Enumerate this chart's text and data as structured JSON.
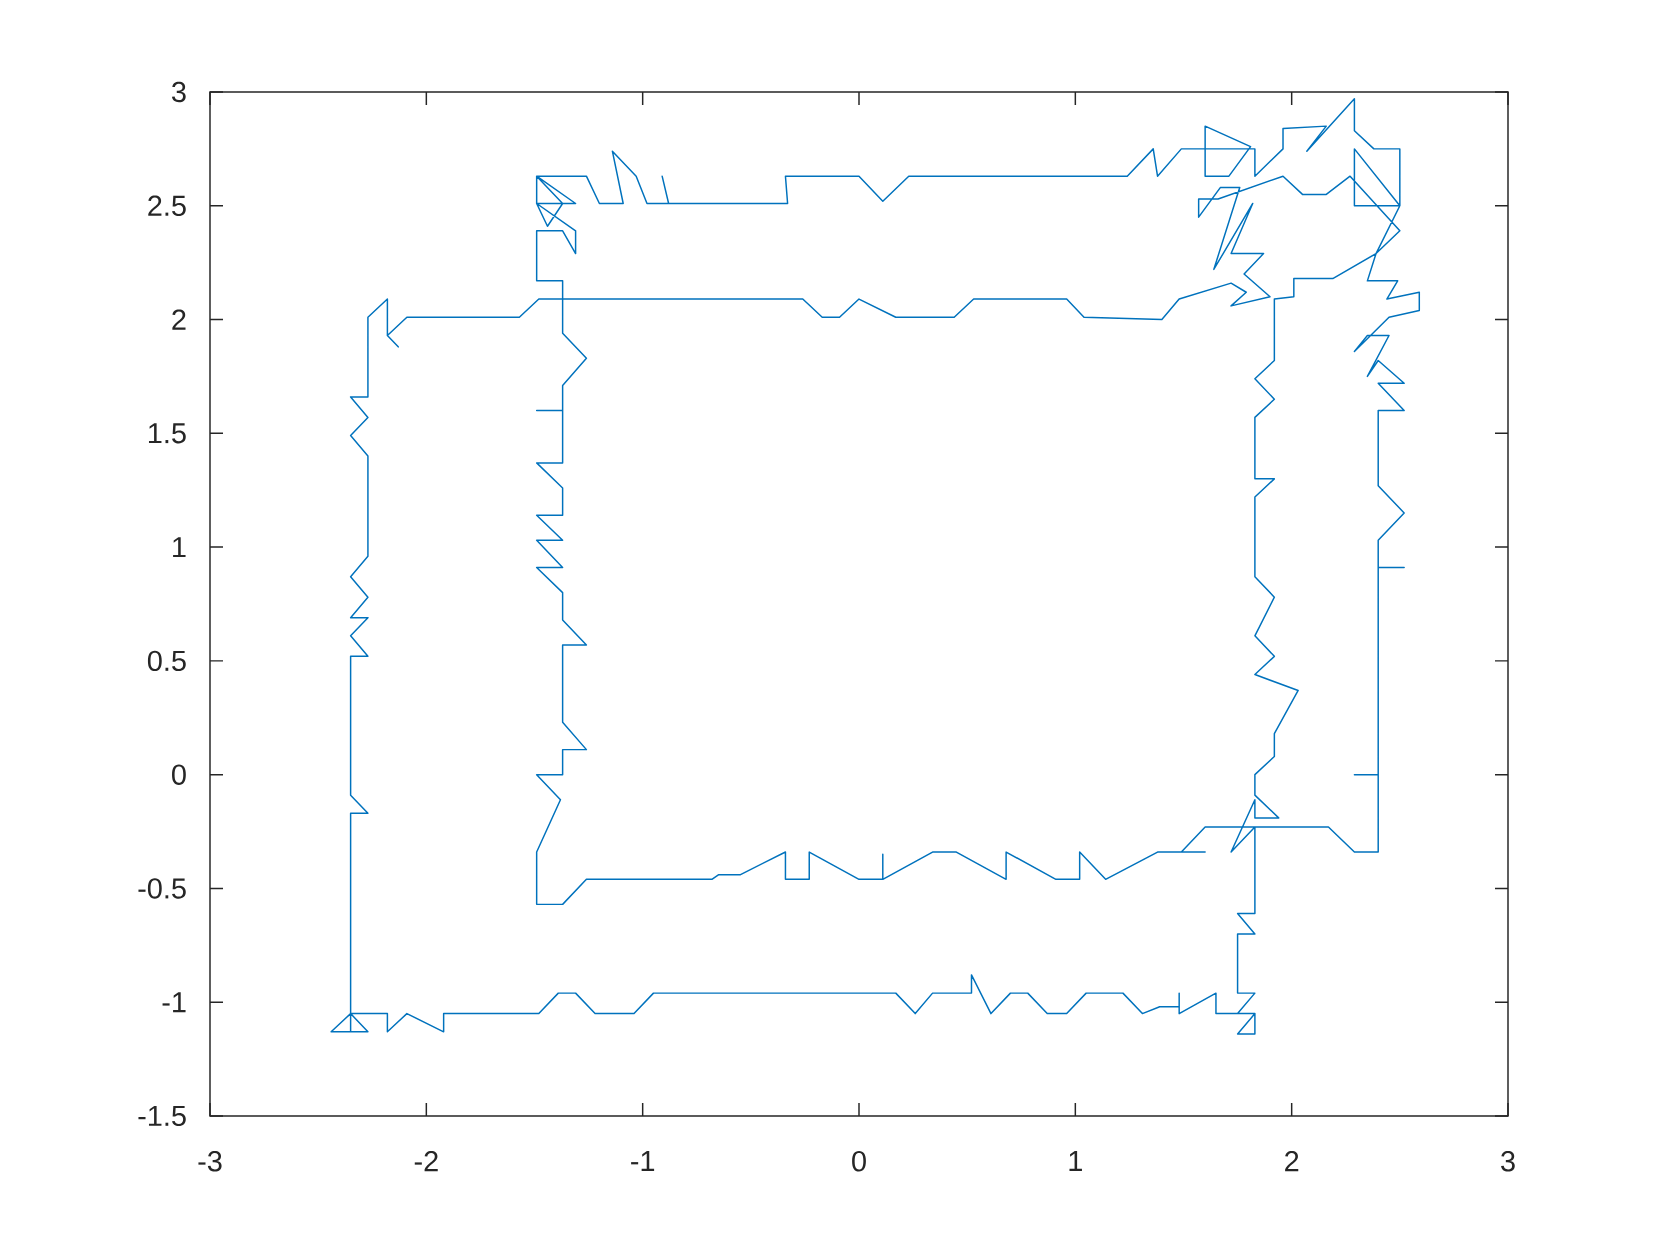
{
  "chart_data": {
    "type": "line",
    "xlim": [
      -3,
      3
    ],
    "ylim": [
      -1.5,
      3
    ],
    "xticks": [
      -3,
      -2,
      -1,
      0,
      1,
      2,
      3
    ],
    "yticks": [
      -1.5,
      -1,
      -0.5,
      0,
      0.5,
      1,
      1.5,
      2,
      2.5,
      3
    ],
    "marker": "none",
    "line_style": "solid",
    "series": [
      {
        "color": "#0072bd",
        "x": [
          -2.35,
          -2.35,
          -2.44,
          -2.27,
          -2.35,
          -2.35,
          -2.27,
          -2.35,
          -2.35,
          -2.27,
          -2.35,
          -2.27,
          -2.35,
          -2.27,
          -2.35,
          -2.27,
          -2.27,
          -2.35,
          -2.27,
          -2.35,
          -2.27,
          -2.27,
          -2.18,
          -2.18,
          -2.13,
          -2.18,
          -2.09,
          -1.57,
          -1.48,
          -0.26,
          -0.17,
          -0.09,
          0,
          0.17,
          0.44,
          0.53,
          0.96,
          1.04,
          1.4,
          1.48,
          1.72,
          1.79,
          1.72,
          1.9,
          1.78,
          1.87,
          1.72,
          1.82,
          1.64,
          1.76,
          1.67,
          1.57,
          1.57,
          1.66,
          1.96,
          2.05,
          2.16,
          2.27,
          2.5,
          2.39,
          2.35,
          2.49,
          2.44,
          2.59,
          2.59,
          2.45,
          2.29,
          2.35,
          2.45,
          2.35,
          2.4,
          2.52,
          2.4,
          2.52,
          2.4,
          2.4,
          2.52,
          2.4,
          2.4,
          2.52,
          2.4,
          2.4,
          2.29,
          2.4,
          2.4,
          2.29,
          2.17,
          1.6,
          1.49,
          1.6,
          1.49,
          1.38,
          1.14,
          1.02,
          1.02,
          0.91,
          0.68,
          0.68,
          0.45,
          0.34,
          0.11,
          0.11,
          0.11,
          0,
          -0.23,
          -0.23,
          -0.34,
          -0.34,
          -0.55,
          -0.65,
          -0.68,
          -1.26,
          -1.37,
          -1.49,
          -1.49,
          -1.38,
          -1.49,
          -1.37,
          -1.37,
          -1.26,
          -1.37,
          -1.37,
          -1.26,
          -1.37,
          -1.37,
          -1.49,
          -1.37,
          -1.49,
          -1.37,
          -1.49,
          -1.37,
          -1.37,
          -1.49,
          -1.37,
          -1.37,
          -1.49,
          -1.37,
          -1.37,
          -1.26,
          -1.37,
          -1.37,
          -1.49,
          -1.49,
          -1.37,
          -1.31,
          -1.31,
          -1.49,
          -1.31,
          -1.49,
          -1.37,
          -1.44,
          -1.49,
          -1.49,
          -1.26,
          -1.2,
          -1.09,
          -1.14,
          -1.03,
          -0.98,
          -0.88,
          -0.91,
          -0.88,
          -0.33,
          -0.34,
          0,
          0.11,
          0.23,
          1.24,
          1.36,
          1.38,
          1.49,
          1.6,
          1.6,
          1.81,
          1.71,
          1.6,
          1.6,
          1.83,
          1.83,
          1.96,
          1.96,
          2.16,
          2.07,
          2.29,
          2.29,
          2.38,
          2.5,
          2.5,
          2.29,
          2.29,
          2.5,
          2.39,
          2.19,
          2.01,
          2.01,
          1.92,
          1.92,
          1.83,
          1.92,
          1.83,
          1.83,
          1.92,
          1.83,
          1.83,
          1.92,
          1.83,
          1.92,
          1.83,
          2.03,
          1.92,
          1.92,
          1.83,
          1.83,
          1.94,
          1.83,
          1.83,
          1.72,
          1.83,
          1.83,
          1.75,
          1.83,
          1.75,
          1.75,
          1.83,
          1.75,
          1.83,
          1.83,
          1.75,
          1.83,
          1.65,
          1.65,
          1.48,
          1.48,
          1.48,
          1.39,
          1.31,
          1.22,
          1.05,
          0.96,
          0.87,
          0.78,
          0.7,
          0.61,
          0.52,
          0.52,
          0.34,
          0.26,
          0.17,
          -0.95,
          -1.04,
          -1.22,
          -1.31,
          -1.39,
          -1.48,
          -1.92,
          -1.92,
          -2.09,
          -2.18,
          -2.18,
          -2.35
        ],
        "values": [
          -1.13,
          -1.05,
          -1.13,
          -1.13,
          -1.05,
          -0.17,
          -0.17,
          -0.09,
          0.52,
          0.52,
          0.61,
          0.69,
          0.69,
          0.78,
          0.87,
          0.96,
          1.4,
          1.49,
          1.57,
          1.66,
          1.66,
          2.01,
          2.09,
          1.93,
          1.88,
          1.93,
          2.01,
          2.01,
          2.09,
          2.09,
          2.01,
          2.01,
          2.09,
          2.01,
          2.01,
          2.09,
          2.09,
          2.01,
          2,
          2.09,
          2.16,
          2.12,
          2.06,
          2.1,
          2.2,
          2.29,
          2.29,
          2.51,
          2.22,
          2.58,
          2.58,
          2.45,
          2.53,
          2.53,
          2.63,
          2.55,
          2.55,
          2.63,
          2.39,
          2.29,
          2.17,
          2.17,
          2.09,
          2.12,
          2.04,
          2.01,
          1.86,
          1.93,
          1.93,
          1.75,
          1.82,
          1.72,
          1.72,
          1.6,
          1.6,
          1.27,
          1.15,
          1.03,
          0.91,
          0.91,
          0.91,
          0,
          0,
          0,
          -0.34,
          -0.34,
          -0.23,
          -0.23,
          -0.34,
          -0.34,
          -0.34,
          -0.34,
          -0.46,
          -0.34,
          -0.46,
          -0.46,
          -0.34,
          -0.46,
          -0.34,
          -0.34,
          -0.46,
          -0.35,
          -0.46,
          -0.46,
          -0.34,
          -0.46,
          -0.46,
          -0.34,
          -0.44,
          -0.44,
          -0.46,
          -0.46,
          -0.57,
          -0.57,
          -0.34,
          -0.11,
          0,
          0,
          0.11,
          0.11,
          0.23,
          0.57,
          0.57,
          0.68,
          0.8,
          0.91,
          0.91,
          1.03,
          1.03,
          1.14,
          1.14,
          1.26,
          1.37,
          1.37,
          1.6,
          1.6,
          1.6,
          1.71,
          1.83,
          1.94,
          2.17,
          2.17,
          2.39,
          2.39,
          2.29,
          2.39,
          2.51,
          2.51,
          2.63,
          2.51,
          2.41,
          2.51,
          2.63,
          2.63,
          2.51,
          2.51,
          2.74,
          2.63,
          2.51,
          2.51,
          2.63,
          2.51,
          2.51,
          2.63,
          2.63,
          2.52,
          2.63,
          2.63,
          2.75,
          2.63,
          2.75,
          2.75,
          2.85,
          2.76,
          2.63,
          2.63,
          2.75,
          2.75,
          2.63,
          2.75,
          2.84,
          2.85,
          2.74,
          2.97,
          2.83,
          2.75,
          2.75,
          2.5,
          2.5,
          2.75,
          2.5,
          2.29,
          2.18,
          2.18,
          2.1,
          2.09,
          1.82,
          1.74,
          1.65,
          1.57,
          1.3,
          1.3,
          1.22,
          0.87,
          0.78,
          0.61,
          0.52,
          0.44,
          0.37,
          0.18,
          0.08,
          0,
          -0.09,
          -0.19,
          -0.19,
          -0.11,
          -0.34,
          -0.23,
          -0.61,
          -0.61,
          -0.7,
          -0.7,
          -0.96,
          -0.96,
          -1.05,
          -1.05,
          -1.14,
          -1.14,
          -1.05,
          -1.05,
          -0.96,
          -1.05,
          -0.96,
          -1.02,
          -1.02,
          -1.05,
          -0.96,
          -0.96,
          -1.05,
          -1.05,
          -0.96,
          -0.96,
          -1.05,
          -0.88,
          -0.96,
          -0.96,
          -1.05,
          -0.96,
          -0.96,
          -1.05,
          -1.05,
          -0.96,
          -0.96,
          -1.05,
          -1.05,
          -1.13,
          -1.05,
          -1.13,
          -1.05,
          -1.05
        ]
      }
    ]
  }
}
